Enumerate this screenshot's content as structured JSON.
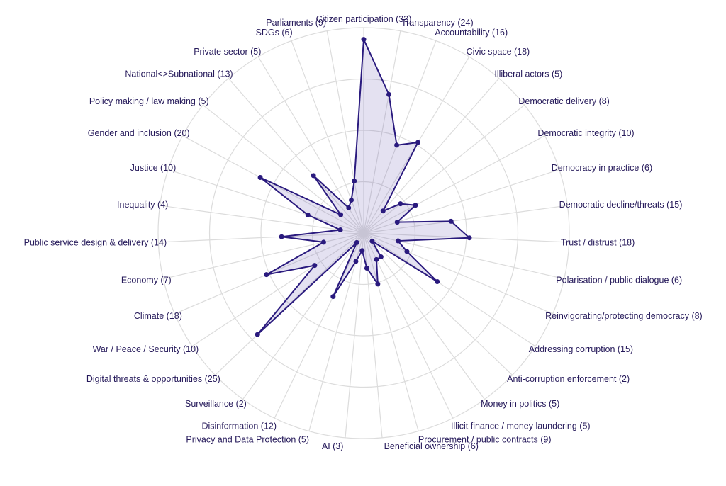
{
  "chart_data": {
    "type": "radar",
    "title": "",
    "categories": [
      "Citizen participation (33)",
      "Transparency (24)",
      "Accountability (16)",
      "Civic space (18)",
      "Illiberal actors (5)",
      "Democratic delivery (8)",
      "Democratic integrity (10)",
      "Democracy in practice (6)",
      "Democratic decline/threats (15)",
      "Trust / distrust (18)",
      "Polarisation / public dialogue (6)",
      "Reinvigorating/protecting democracy (8)",
      "Addressing corruption (15)",
      "Anti-corruption enforcement (2)",
      "Money in politics (5)",
      "Illicit finance / money laundering (5)",
      "Procurement / public contracts (9)",
      "Beneficial ownership (6)",
      "AI (3)",
      "Privacy and Data Protection (5)",
      "Disinformation (12)",
      "Surveillance (2)",
      "Digital threats & opportunities (25)",
      "War / Peace / Security (10)",
      "Climate (18)",
      "Economy (7)",
      "Public service design & delivery (14)",
      "Inequality (4)",
      "Justice (10)",
      "Gender and inclusion (20)",
      "Policy making / law making (5)",
      "National<>Subnational (13)",
      "Private sector (5)",
      "SDGs (6)",
      "Parliaments (9)"
    ],
    "values": [
      33,
      24,
      16,
      18,
      5,
      8,
      10,
      6,
      15,
      18,
      6,
      8,
      15,
      2,
      5,
      5,
      9,
      6,
      3,
      5,
      12,
      2,
      25,
      10,
      18,
      7,
      14,
      4,
      10,
      20,
      5,
      13,
      5,
      6,
      9
    ],
    "rlim": [
      0,
      35
    ],
    "rings": 4,
    "grid": true,
    "legend": "none",
    "colors": {
      "line": "#2a1a7e",
      "fill": "#6a58b0",
      "grid": "#dcdcdc",
      "text": "#25195a"
    }
  }
}
